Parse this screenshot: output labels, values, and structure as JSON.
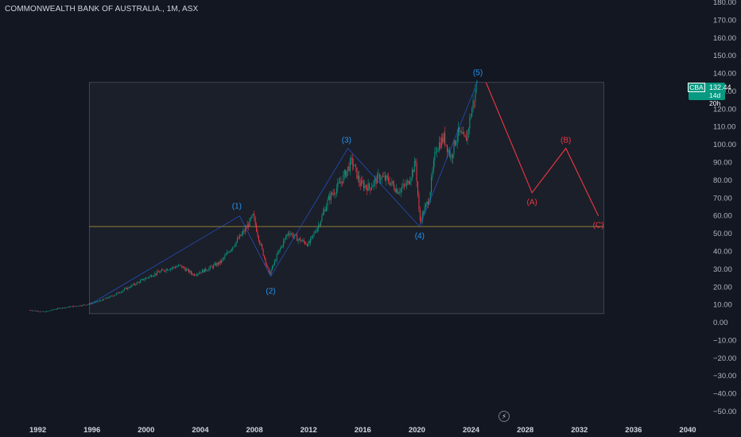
{
  "chart_data": {
    "type": "candlestick",
    "title": "COMMONWEALTH BANK OF AUSTRALIA., 1M, ASX",
    "symbol": "CBA",
    "last_price": "132.44",
    "countdown": "14d 20h",
    "yticks": [
      "180.00",
      "170.00",
      "160.00",
      "150.00",
      "140.00",
      "130.00",
      "120.00",
      "110.00",
      "100.00",
      "90.00",
      "80.00",
      "70.00",
      "60.00",
      "50.00",
      "40.00",
      "30.00",
      "20.00",
      "10.00",
      "0.00",
      "−10.00",
      "−20.00",
      "−30.00",
      "−40.00",
      "−50.00"
    ],
    "xticks": [
      "1992",
      "1996",
      "2000",
      "2004",
      "2008",
      "2012",
      "2016",
      "2020",
      "2024",
      "2028",
      "2032",
      "2036",
      "2040"
    ],
    "ylim": [
      -50,
      180
    ],
    "xlim": [
      1989.5,
      2040
    ],
    "price_path": [
      [
        1991.4,
        7
      ],
      [
        1992.5,
        6
      ],
      [
        1993.5,
        8
      ],
      [
        1994.5,
        9
      ],
      [
        1995.5,
        10
      ],
      [
        1996.5,
        12
      ],
      [
        1997.5,
        15
      ],
      [
        1998.5,
        19
      ],
      [
        1999.5,
        23
      ],
      [
        2000.5,
        27
      ],
      [
        2001.5,
        30
      ],
      [
        2002.5,
        32
      ],
      [
        2003.5,
        27
      ],
      [
        2004.5,
        30
      ],
      [
        2005.5,
        34
      ],
      [
        2006.3,
        42
      ],
      [
        2007.3,
        52
      ],
      [
        2007.9,
        60
      ],
      [
        2008.4,
        45
      ],
      [
        2009.1,
        27
      ],
      [
        2009.8,
        40
      ],
      [
        2010.5,
        51
      ],
      [
        2011.2,
        47
      ],
      [
        2012.0,
        44
      ],
      [
        2012.8,
        56
      ],
      [
        2013.5,
        70
      ],
      [
        2014.3,
        78
      ],
      [
        2015.2,
        91
      ],
      [
        2015.8,
        78
      ],
      [
        2016.5,
        76
      ],
      [
        2017.2,
        82
      ],
      [
        2017.9,
        80
      ],
      [
        2018.6,
        74
      ],
      [
        2019.3,
        78
      ],
      [
        2019.9,
        90
      ],
      [
        2020.2,
        57
      ],
      [
        2020.9,
        70
      ],
      [
        2021.4,
        98
      ],
      [
        2022.0,
        104
      ],
      [
        2022.5,
        93
      ],
      [
        2023.0,
        107
      ],
      [
        2023.6,
        102
      ],
      [
        2024.0,
        118
      ],
      [
        2024.4,
        132.44
      ]
    ],
    "wave_labels": [
      {
        "label": "(1)",
        "x": 2006.7,
        "y": 61,
        "color": "#2962ff"
      },
      {
        "label": "(2)",
        "x": 2009.2,
        "y": 23,
        "color": "#2962ff"
      },
      {
        "label": "(3)",
        "x": 2014.8,
        "y": 98,
        "color": "#2962ff"
      },
      {
        "label": "(4)",
        "x": 2020.2,
        "y": 54,
        "color": "#2962ff"
      },
      {
        "label": "(5)",
        "x": 2024.5,
        "y": 136,
        "color": "#2962ff"
      }
    ],
    "projection_labels": [
      {
        "label": "(A)",
        "x": 2028.5,
        "y": 73,
        "color": "#f23645"
      },
      {
        "label": "(B)",
        "x": 2031.0,
        "y": 98,
        "color": "#f23645"
      },
      {
        "label": "(C)",
        "x": 2033.4,
        "y": 60,
        "color": "#f23645"
      }
    ],
    "projection_path": [
      [
        2025.1,
        135
      ],
      [
        2028.5,
        73
      ],
      [
        2031.0,
        98
      ],
      [
        2033.4,
        60
      ]
    ],
    "horizontal_level": 54,
    "range_box": {
      "x0": 1995.8,
      "x1": 2033.8,
      "y0": 5,
      "y1": 135
    },
    "colors": {
      "up": "#089981",
      "down": "#f23645",
      "wave": "#2962ff",
      "wave_label": "#2196f3",
      "projection": "#f23645",
      "level": "#b5a03a",
      "background": "#131722"
    }
  }
}
